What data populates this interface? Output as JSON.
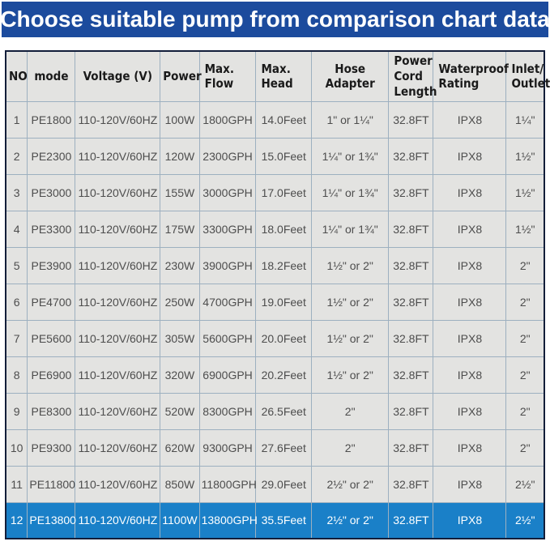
{
  "banner": {
    "title": "Choose suitable pump from comparison chart data"
  },
  "table": {
    "columns": [
      "NO",
      "mode",
      "Voltage (V)",
      "Power",
      "Max.\nFlow",
      "Max.\nHead",
      "Hose Adapter",
      "Power\nCord\nLength",
      "Waterproof\nRating",
      "Inlet/\nOutlet"
    ],
    "rows": [
      [
        "1",
        "PE1800",
        "110-120V/60HZ",
        "100W",
        "1800GPH",
        "14.0Feet",
        "1\" or 1¼\"",
        "32.8FT",
        "IPX8",
        "1¼\""
      ],
      [
        "2",
        "PE2300",
        "110-120V/60HZ",
        "120W",
        "2300GPH",
        "15.0Feet",
        "1¼\" or 1¾\"",
        "32.8FT",
        "IPX8",
        "1½\""
      ],
      [
        "3",
        "PE3000",
        "110-120V/60HZ",
        "155W",
        "3000GPH",
        "17.0Feet",
        "1¼\" or 1¾\"",
        "32.8FT",
        "IPX8",
        "1½\""
      ],
      [
        "4",
        "PE3300",
        "110-120V/60HZ",
        "175W",
        "3300GPH",
        "18.0Feet",
        "1¼\" or 1¾\"",
        "32.8FT",
        "IPX8",
        "1½\""
      ],
      [
        "5",
        "PE3900",
        "110-120V/60HZ",
        "230W",
        "3900GPH",
        "18.2Feet",
        "1½\" or 2\"",
        "32.8FT",
        "IPX8",
        "2\""
      ],
      [
        "6",
        "PE4700",
        "110-120V/60HZ",
        "250W",
        "4700GPH",
        "19.0Feet",
        "1½\" or 2\"",
        "32.8FT",
        "IPX8",
        "2\""
      ],
      [
        "7",
        "PE5600",
        "110-120V/60HZ",
        "305W",
        "5600GPH",
        "20.0Feet",
        "1½\" or 2\"",
        "32.8FT",
        "IPX8",
        "2\""
      ],
      [
        "8",
        "PE6900",
        "110-120V/60HZ",
        "320W",
        "6900GPH",
        "20.2Feet",
        "1½\" or 2\"",
        "32.8FT",
        "IPX8",
        "2\""
      ],
      [
        "9",
        "PE8300",
        "110-120V/60HZ",
        "520W",
        "8300GPH",
        "26.5Feet",
        "2\"",
        "32.8FT",
        "IPX8",
        "2\""
      ],
      [
        "10",
        "PE9300",
        "110-120V/60HZ",
        "620W",
        "9300GPH",
        "27.6Feet",
        "2\"",
        "32.8FT",
        "IPX8",
        "2\""
      ],
      [
        "11",
        "PE11800",
        "110-120V/60HZ",
        "850W",
        "11800GPH",
        "29.0Feet",
        "2½\" or 2\"",
        "32.8FT",
        "IPX8",
        "2½\""
      ],
      [
        "12",
        "PE13800",
        "110-120V/60HZ",
        "1100W",
        "13800GPH",
        "35.5Feet",
        "2½\" or 2\"",
        "32.8FT",
        "IPX8",
        "2½\""
      ]
    ],
    "highlighted_row_no": "12"
  },
  "colors": {
    "banner_bg": "#1c4b9d",
    "highlight_row_bg": "#1a80c8",
    "cell_bg": "#e3e3e1",
    "grid_line": "#9db0c0",
    "outer_border": "#131e3a"
  }
}
